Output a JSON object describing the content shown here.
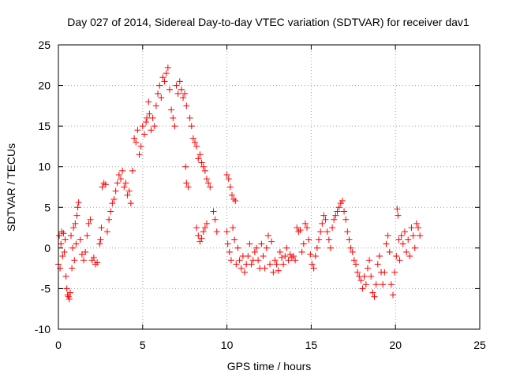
{
  "chart_data": {
    "type": "scatter",
    "title": "Day 027 of 2014, Sidereal Day-to-day VTEC variation (SDTVAR) for receiver dav1",
    "xlabel": "GPS time / hours",
    "ylabel": "SDTVAR / TECUs",
    "xlim": [
      0,
      25
    ],
    "ylim": [
      -10,
      25
    ],
    "xticks": [
      "0",
      "5",
      "10",
      "15",
      "20",
      "25"
    ],
    "yticks": [
      "-10",
      "-5",
      "0",
      "5",
      "10",
      "15",
      "20",
      "25"
    ],
    "grid": true,
    "marker": "+",
    "color": "#ff0000",
    "series": [
      {
        "name": "dav1",
        "points": [
          [
            0.0,
            -2.0
          ],
          [
            0.05,
            1.5
          ],
          [
            0.1,
            -2.5
          ],
          [
            0.15,
            0.5
          ],
          [
            0.2,
            2.0
          ],
          [
            0.25,
            -1.0
          ],
          [
            0.3,
            1.8
          ],
          [
            0.35,
            -0.5
          ],
          [
            0.4,
            1.0
          ],
          [
            0.45,
            -3.5
          ],
          [
            0.5,
            -5.0
          ],
          [
            0.55,
            -5.8
          ],
          [
            0.6,
            -6.0
          ],
          [
            0.65,
            -6.3
          ],
          [
            0.7,
            -5.5
          ],
          [
            0.75,
            1.5
          ],
          [
            0.8,
            -2.5
          ],
          [
            0.85,
            0.0
          ],
          [
            0.9,
            2.5
          ],
          [
            0.95,
            -1.5
          ],
          [
            1.0,
            3.0
          ],
          [
            1.05,
            0.5
          ],
          [
            1.1,
            4.0
          ],
          [
            1.15,
            5.0
          ],
          [
            1.2,
            5.6
          ],
          [
            1.3,
            1.0
          ],
          [
            1.4,
            -0.8
          ],
          [
            1.5,
            -1.5
          ],
          [
            1.6,
            -0.5
          ],
          [
            1.7,
            1.5
          ],
          [
            1.8,
            3.0
          ],
          [
            1.9,
            3.5
          ],
          [
            2.0,
            -1.5
          ],
          [
            2.1,
            -1.2
          ],
          [
            2.2,
            -2.0
          ],
          [
            2.3,
            -1.8
          ],
          [
            2.45,
            0.5
          ],
          [
            2.5,
            1.0
          ],
          [
            2.55,
            2.5
          ],
          [
            2.6,
            7.5
          ],
          [
            2.7,
            8.0
          ],
          [
            2.8,
            7.8
          ],
          [
            2.9,
            2.0
          ],
          [
            3.0,
            3.5
          ],
          [
            3.1,
            4.5
          ],
          [
            3.2,
            5.5
          ],
          [
            3.3,
            6.0
          ],
          [
            3.4,
            7.0
          ],
          [
            3.5,
            8.0
          ],
          [
            3.6,
            9.0
          ],
          [
            3.7,
            8.5
          ],
          [
            3.8,
            9.5
          ],
          [
            3.9,
            7.5
          ],
          [
            4.0,
            8.0
          ],
          [
            4.1,
            6.5
          ],
          [
            4.2,
            7.0
          ],
          [
            4.3,
            5.5
          ],
          [
            4.4,
            9.5
          ],
          [
            4.5,
            13.5
          ],
          [
            4.6,
            13.0
          ],
          [
            4.7,
            14.5
          ],
          [
            4.8,
            11.5
          ],
          [
            4.9,
            12.5
          ],
          [
            5.0,
            15.0
          ],
          [
            5.1,
            14.0
          ],
          [
            5.2,
            15.5
          ],
          [
            5.25,
            16.0
          ],
          [
            5.35,
            18.0
          ],
          [
            5.4,
            16.5
          ],
          [
            5.5,
            14.5
          ],
          [
            5.6,
            16.0
          ],
          [
            5.7,
            15.0
          ],
          [
            5.8,
            17.5
          ],
          [
            5.9,
            19.0
          ],
          [
            6.0,
            20.0
          ],
          [
            6.1,
            18.5
          ],
          [
            6.2,
            21.0
          ],
          [
            6.3,
            20.5
          ],
          [
            6.4,
            21.5
          ],
          [
            6.5,
            22.2
          ],
          [
            6.6,
            19.5
          ],
          [
            6.7,
            17.0
          ],
          [
            6.8,
            16.0
          ],
          [
            6.9,
            15.0
          ],
          [
            7.0,
            20.0
          ],
          [
            7.1,
            19.0
          ],
          [
            7.2,
            20.5
          ],
          [
            7.3,
            19.5
          ],
          [
            7.4,
            18.5
          ],
          [
            7.5,
            19.0
          ],
          [
            7.6,
            17.5
          ],
          [
            7.55,
            10.0
          ],
          [
            7.6,
            8.0
          ],
          [
            7.7,
            7.5
          ],
          [
            7.8,
            16.0
          ],
          [
            7.9,
            15.0
          ],
          [
            8.0,
            13.5
          ],
          [
            8.1,
            13.0
          ],
          [
            8.2,
            12.5
          ],
          [
            8.3,
            11.0
          ],
          [
            8.4,
            11.5
          ],
          [
            8.5,
            10.5
          ],
          [
            8.6,
            10.0
          ],
          [
            8.7,
            9.5
          ],
          [
            8.8,
            8.5
          ],
          [
            8.9,
            8.0
          ],
          [
            9.0,
            7.5
          ],
          [
            8.2,
            2.5
          ],
          [
            8.3,
            1.5
          ],
          [
            8.4,
            0.8
          ],
          [
            8.5,
            1.2
          ],
          [
            8.6,
            2.0
          ],
          [
            8.7,
            2.5
          ],
          [
            8.8,
            3.0
          ],
          [
            9.2,
            4.5
          ],
          [
            9.3,
            3.5
          ],
          [
            9.4,
            2.0
          ],
          [
            10.0,
            9.0
          ],
          [
            10.1,
            8.5
          ],
          [
            10.2,
            7.5
          ],
          [
            10.3,
            6.5
          ],
          [
            10.4,
            6.0
          ],
          [
            10.5,
            5.8
          ],
          [
            10.0,
            2.0
          ],
          [
            10.05,
            0.5
          ],
          [
            10.15,
            -0.5
          ],
          [
            10.25,
            -1.5
          ],
          [
            10.35,
            2.5
          ],
          [
            10.45,
            1.0
          ],
          [
            10.55,
            -2.0
          ],
          [
            10.65,
            0.0
          ],
          [
            10.75,
            -1.5
          ],
          [
            10.85,
            -2.5
          ],
          [
            10.95,
            -1.0
          ],
          [
            11.05,
            -3.0
          ],
          [
            11.15,
            -2.0
          ],
          [
            11.25,
            -1.0
          ],
          [
            11.35,
            0.5
          ],
          [
            11.45,
            -2.0
          ],
          [
            11.55,
            -1.5
          ],
          [
            11.65,
            -0.5
          ],
          [
            11.75,
            0.0
          ],
          [
            11.85,
            -1.5
          ],
          [
            11.95,
            -2.5
          ],
          [
            12.05,
            0.5
          ],
          [
            12.15,
            -1.0
          ],
          [
            12.25,
            -2.5
          ],
          [
            12.35,
            0.0
          ],
          [
            12.45,
            1.5
          ],
          [
            12.55,
            -2.0
          ],
          [
            12.65,
            0.8
          ],
          [
            12.75,
            -3.0
          ],
          [
            12.85,
            -1.5
          ],
          [
            12.95,
            -2.0
          ],
          [
            13.05,
            -2.8
          ],
          [
            13.15,
            -0.5
          ],
          [
            13.25,
            -1.2
          ],
          [
            13.35,
            -2.0
          ],
          [
            13.45,
            -1.0
          ],
          [
            13.55,
            0.0
          ],
          [
            13.65,
            -1.5
          ],
          [
            13.75,
            -0.8
          ],
          [
            13.85,
            -1.2
          ],
          [
            13.95,
            -1.0
          ],
          [
            14.05,
            -1.5
          ],
          [
            14.15,
            2.5
          ],
          [
            14.25,
            2.0
          ],
          [
            14.35,
            2.2
          ],
          [
            14.45,
            -0.5
          ],
          [
            14.55,
            0.5
          ],
          [
            14.65,
            3.0
          ],
          [
            14.75,
            2.5
          ],
          [
            14.85,
            1.0
          ],
          [
            14.95,
            -0.8
          ],
          [
            15.05,
            -2.0
          ],
          [
            15.15,
            -2.5
          ],
          [
            15.25,
            -1.0
          ],
          [
            15.35,
            0.0
          ],
          [
            15.45,
            1.0
          ],
          [
            15.55,
            2.0
          ],
          [
            15.65,
            3.0
          ],
          [
            15.75,
            4.0
          ],
          [
            15.85,
            3.5
          ],
          [
            15.95,
            2.0
          ],
          [
            16.05,
            1.0
          ],
          [
            16.15,
            0.0
          ],
          [
            16.25,
            2.5
          ],
          [
            16.35,
            3.5
          ],
          [
            16.45,
            4.0
          ],
          [
            16.55,
            4.5
          ],
          [
            16.65,
            5.0
          ],
          [
            16.75,
            5.5
          ],
          [
            16.85,
            5.8
          ],
          [
            16.95,
            4.5
          ],
          [
            17.05,
            3.5
          ],
          [
            17.15,
            2.0
          ],
          [
            17.25,
            1.0
          ],
          [
            17.35,
            0.0
          ],
          [
            17.45,
            -0.5
          ],
          [
            17.55,
            -1.5
          ],
          [
            17.65,
            -2.0
          ],
          [
            17.75,
            -3.0
          ],
          [
            17.85,
            -3.5
          ],
          [
            17.95,
            -4.0
          ],
          [
            18.05,
            -5.0
          ],
          [
            18.15,
            -3.5
          ],
          [
            18.25,
            -4.5
          ],
          [
            18.35,
            -2.5
          ],
          [
            18.45,
            -1.5
          ],
          [
            18.55,
            -3.5
          ],
          [
            18.65,
            -5.5
          ],
          [
            18.75,
            -6.0
          ],
          [
            18.85,
            -4.5
          ],
          [
            18.95,
            -2.0
          ],
          [
            19.05,
            -1.0
          ],
          [
            19.15,
            -3.0
          ],
          [
            19.25,
            -4.5
          ],
          [
            19.35,
            -3.0
          ],
          [
            19.45,
            0.5
          ],
          [
            19.55,
            1.5
          ],
          [
            19.65,
            -0.5
          ],
          [
            19.75,
            -4.5
          ],
          [
            19.85,
            -5.8
          ],
          [
            19.95,
            -3.0
          ],
          [
            20.05,
            -1.0
          ],
          [
            20.1,
            4.8
          ],
          [
            20.15,
            4.0
          ],
          [
            20.2,
            1.0
          ],
          [
            20.25,
            -1.5
          ],
          [
            20.35,
            1.5
          ],
          [
            20.45,
            0.5
          ],
          [
            20.55,
            2.0
          ],
          [
            20.65,
            -0.5
          ],
          [
            20.75,
            1.0
          ],
          [
            20.85,
            -1.0
          ],
          [
            20.95,
            2.5
          ],
          [
            21.05,
            1.5
          ],
          [
            21.15,
            0.0
          ],
          [
            21.25,
            3.0
          ],
          [
            21.35,
            2.5
          ],
          [
            21.45,
            1.5
          ]
        ]
      }
    ]
  }
}
